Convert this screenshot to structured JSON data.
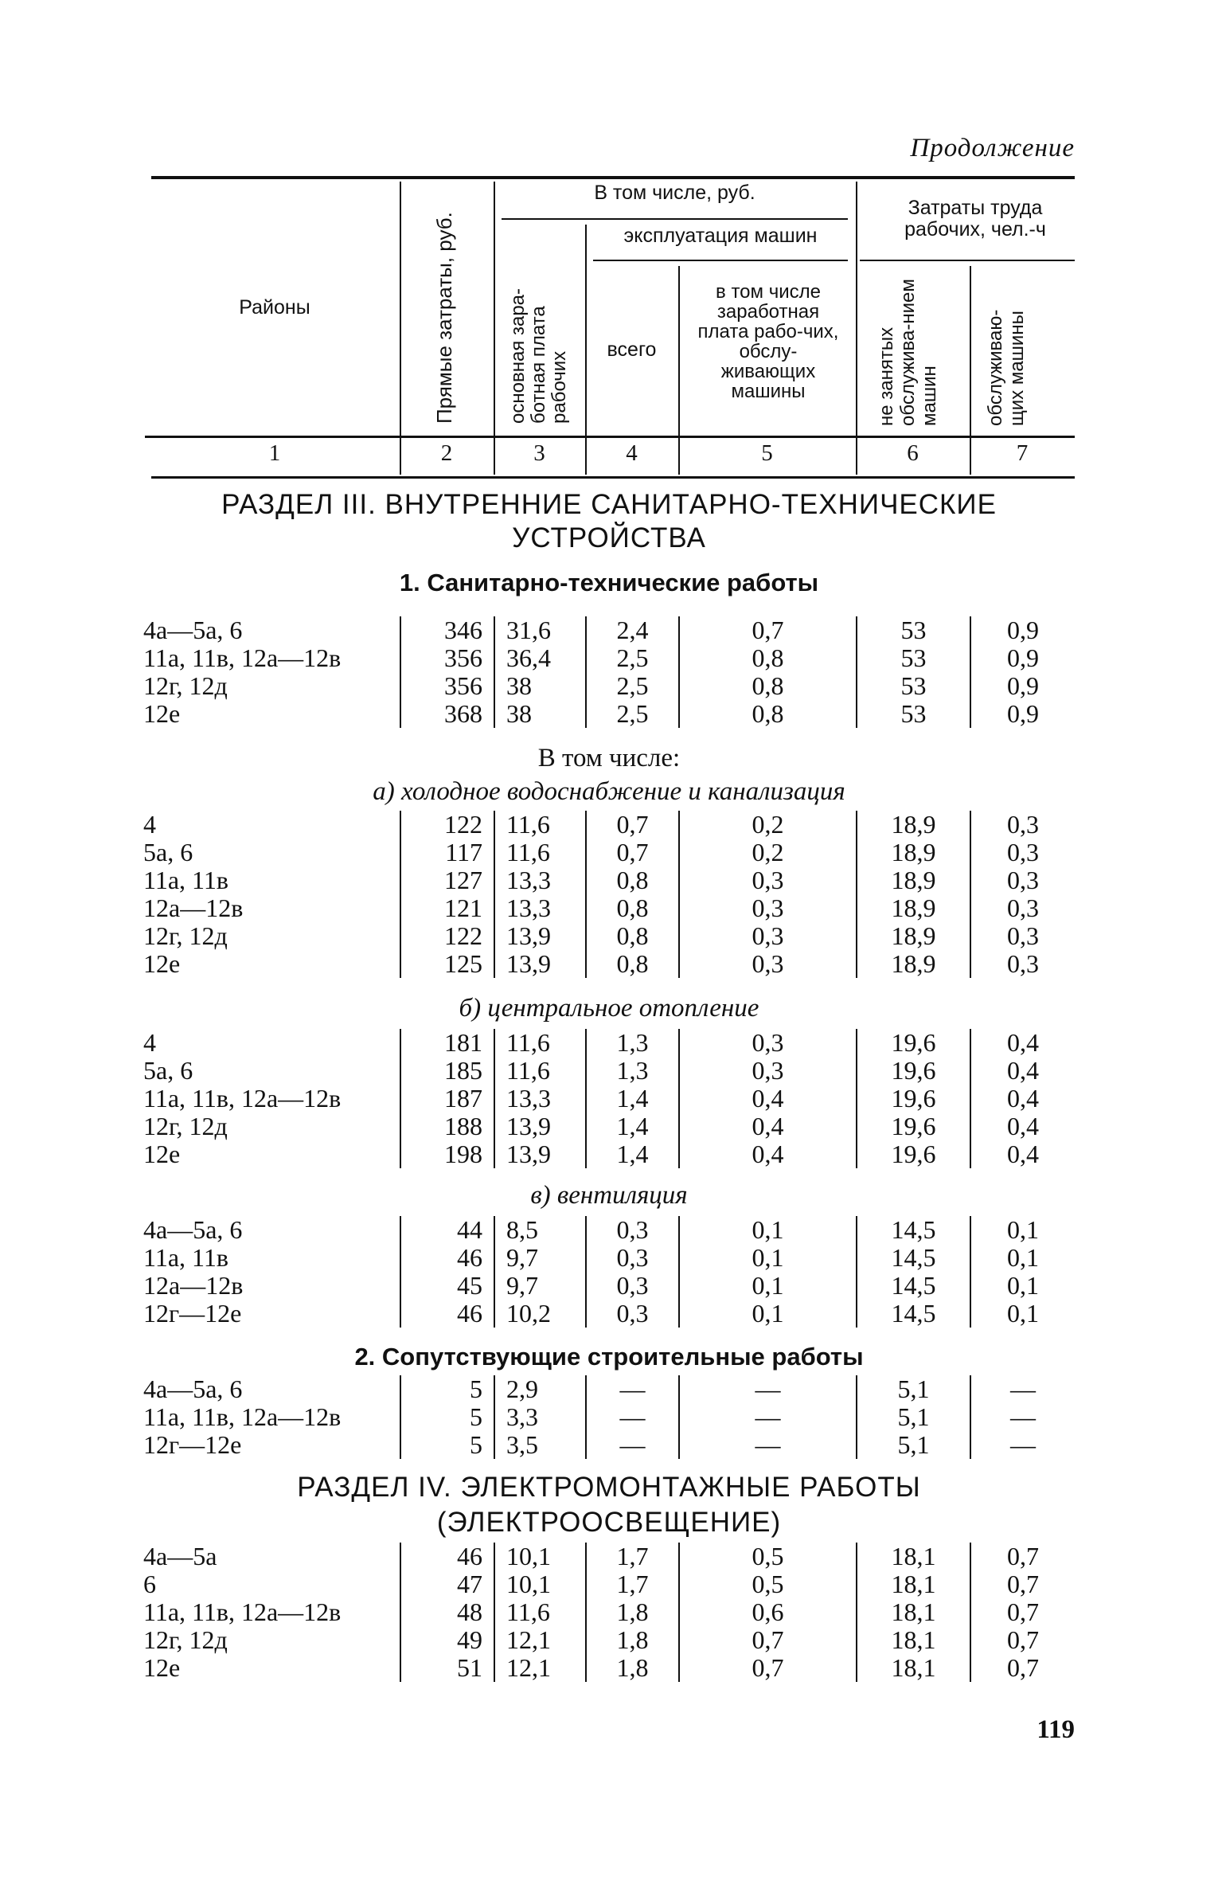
{
  "continuation": "Продолжение",
  "header": {
    "col1": "Районы",
    "col2": "Прямые затраты, руб.",
    "group_rub": "В том числе, руб.",
    "col3": "основная зара-ботная плата рабочих",
    "group_machines": "эксплуатация машин",
    "col4": "всего",
    "col5": "в том числе заработная плата рабо-чих, обслу-живающих машины",
    "group_labor": "Затраты труда рабочих, чел.-ч",
    "col6": "не занятых обслужива-нием машин",
    "col7": "обслуживаю-щих машины",
    "numbers": [
      "1",
      "2",
      "3",
      "4",
      "5",
      "6",
      "7"
    ]
  },
  "section3": {
    "title_line1": "РАЗДЕЛ III. ВНУТРЕННИЕ САНИТАРНО-ТЕХНИЧЕСКИЕ",
    "title_line2": "УСТРОЙСТВА",
    "sub1": {
      "title": "1. Санитарно-технические работы",
      "rows": [
        [
          "4а—5а, 6",
          "346",
          "31,6",
          "2,4",
          "0,7",
          "53",
          "0,9"
        ],
        [
          "11а, 11в, 12а—12в",
          "356",
          "36,4",
          "2,5",
          "0,8",
          "53",
          "0,9"
        ],
        [
          "12г, 12д",
          "356",
          "38",
          "2,5",
          "0,8",
          "53",
          "0,9"
        ],
        [
          "12е",
          "368",
          "38",
          "2,5",
          "0,8",
          "53",
          "0,9"
        ]
      ],
      "including": "В том числе:",
      "a": {
        "title": "а) холодное водоснабжение и канализация",
        "rows": [
          [
            "4",
            "122",
            "11,6",
            "0,7",
            "0,2",
            "18,9",
            "0,3"
          ],
          [
            "5а, 6",
            "117",
            "11,6",
            "0,7",
            "0,2",
            "18,9",
            "0,3"
          ],
          [
            "11а, 11в",
            "127",
            "13,3",
            "0,8",
            "0,3",
            "18,9",
            "0,3"
          ],
          [
            "12а—12в",
            "121",
            "13,3",
            "0,8",
            "0,3",
            "18,9",
            "0,3"
          ],
          [
            "12г, 12д",
            "122",
            "13,9",
            "0,8",
            "0,3",
            "18,9",
            "0,3"
          ],
          [
            "12е",
            "125",
            "13,9",
            "0,8",
            "0,3",
            "18,9",
            "0,3"
          ]
        ]
      },
      "b": {
        "title": "б) центральное отопление",
        "rows": [
          [
            "4",
            "181",
            "11,6",
            "1,3",
            "0,3",
            "19,6",
            "0,4"
          ],
          [
            "5а, 6",
            "185",
            "11,6",
            "1,3",
            "0,3",
            "19,6",
            "0,4"
          ],
          [
            "11а, 11в, 12а—12в",
            "187",
            "13,3",
            "1,4",
            "0,4",
            "19,6",
            "0,4"
          ],
          [
            "12г, 12д",
            "188",
            "13,9",
            "1,4",
            "0,4",
            "19,6",
            "0,4"
          ],
          [
            "12е",
            "198",
            "13,9",
            "1,4",
            "0,4",
            "19,6",
            "0,4"
          ]
        ]
      },
      "v": {
        "title": "в) вентиляция",
        "rows": [
          [
            "4а—5а, 6",
            "44",
            "8,5",
            "0,3",
            "0,1",
            "14,5",
            "0,1"
          ],
          [
            "11а, 11в",
            "46",
            "9,7",
            "0,3",
            "0,1",
            "14,5",
            "0,1"
          ],
          [
            "12а—12в",
            "45",
            "9,7",
            "0,3",
            "0,1",
            "14,5",
            "0,1"
          ],
          [
            "12г—12е",
            "46",
            "10,2",
            "0,3",
            "0,1",
            "14,5",
            "0,1"
          ]
        ]
      }
    },
    "sub2": {
      "title": "2. Сопутствующие строительные работы",
      "rows": [
        [
          "4а—5а, 6",
          "5",
          "2,9",
          "—",
          "—",
          "5,1",
          "—"
        ],
        [
          "11а, 11в, 12а—12в",
          "5",
          "3,3",
          "—",
          "—",
          "5,1",
          "—"
        ],
        [
          "12г—12е",
          "5",
          "3,5",
          "—",
          "—",
          "5,1",
          "—"
        ]
      ]
    }
  },
  "section4": {
    "title_line1": "РАЗДЕЛ IV. ЭЛЕКТРОМОНТАЖНЫЕ РАБОТЫ",
    "title_line2": "(ЭЛЕКТРООСВЕЩЕНИЕ)",
    "rows": [
      [
        "4а—5а",
        "46",
        "10,1",
        "1,7",
        "0,5",
        "18,1",
        "0,7"
      ],
      [
        "6",
        "47",
        "10,1",
        "1,7",
        "0,5",
        "18,1",
        "0,7"
      ],
      [
        "11а, 11в, 12а—12в",
        "48",
        "11,6",
        "1,8",
        "0,6",
        "18,1",
        "0,7"
      ],
      [
        "12г, 12д",
        "49",
        "12,1",
        "1,8",
        "0,7",
        "18,1",
        "0,7"
      ],
      [
        "12е",
        "51",
        "12,1",
        "1,8",
        "0,7",
        "18,1",
        "0,7"
      ]
    ]
  },
  "page_number": "119"
}
